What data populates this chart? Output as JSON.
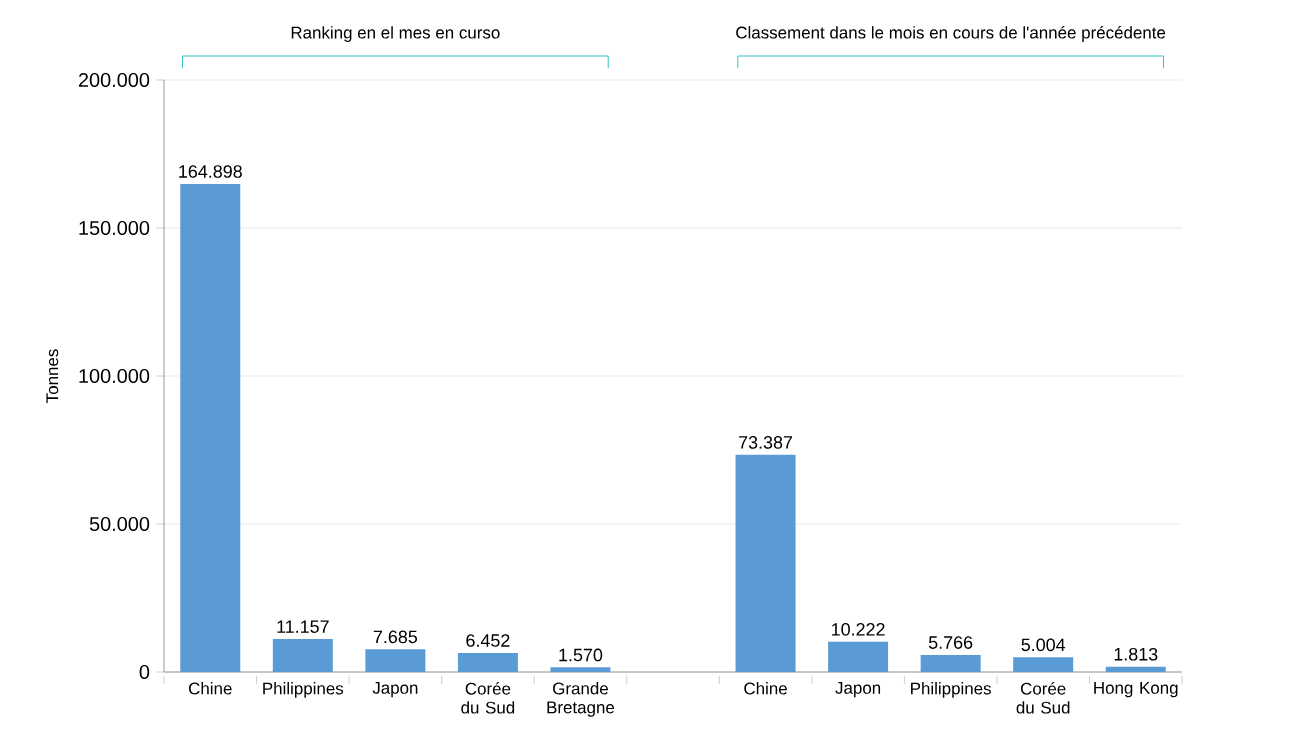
{
  "chart_data": {
    "type": "bar",
    "ylabel": "Tonnes",
    "categories": [
      "Chine",
      "Philippines",
      "Japon",
      "Corée du Sud",
      "Grande Bretagne",
      null,
      "Chine",
      "Japon",
      "Philippines",
      "Corée du Sud",
      "Hong Kong"
    ],
    "values": [
      164898,
      11157,
      7685,
      6452,
      1570,
      null,
      73387,
      10222,
      5766,
      5004,
      1813
    ],
    "value_labels": [
      "164.898",
      "11.157",
      "7.685",
      "6.452",
      "1.570",
      null,
      "73.387",
      "10.222",
      "5.766",
      "5.004",
      "1.813"
    ],
    "color": "#5b9bd5",
    "ylim": [
      0,
      200000
    ],
    "yticks": [
      0,
      {
        "value": 50000,
        "label": "50.000"
      },
      {
        "value": 100000,
        "label": "100.000"
      },
      {
        "value": 150000,
        "label": "150.000"
      },
      {
        "value": 200000,
        "label": "200.000"
      }
    ],
    "grid": "y",
    "annotations": [
      "Ranking en el mes en curso",
      "Classement dans le mois en cours de l'année précédente"
    ]
  }
}
